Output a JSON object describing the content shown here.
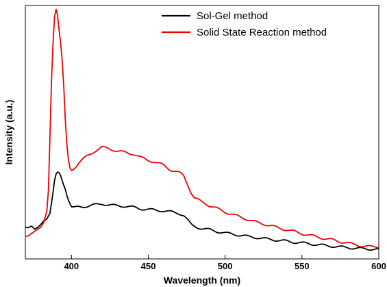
{
  "chart_data": {
    "type": "line",
    "title": "",
    "xlabel": "Wavelength (nm)",
    "ylabel": "Intensity (a.u.)",
    "xlim": [
      370,
      600
    ],
    "ylim": [
      0,
      100
    ],
    "x_ticks": [
      400,
      450,
      500,
      550,
      600
    ],
    "y_tick_labels_shown": false,
    "grid": false,
    "legend_position": "top-right",
    "series": [
      {
        "name": "Sol-Gel method",
        "color": "#000000",
        "points": [
          [
            370,
            12.5
          ],
          [
            372,
            12.0
          ],
          [
            374,
            12.5
          ],
          [
            376,
            11.5
          ],
          [
            378,
            12.5
          ],
          [
            380,
            14.0
          ],
          [
            382,
            15.5
          ],
          [
            384,
            15.8
          ],
          [
            386,
            18.0
          ],
          [
            388,
            26.0
          ],
          [
            389,
            31.0
          ],
          [
            390,
            33.5
          ],
          [
            391,
            34.3
          ],
          [
            392,
            34.0
          ],
          [
            393,
            32.8
          ],
          [
            394,
            30.8
          ],
          [
            395,
            29.0
          ],
          [
            396,
            27.5
          ],
          [
            397,
            25.5
          ],
          [
            398,
            23.5
          ],
          [
            399,
            22.0
          ],
          [
            400,
            20.5
          ],
          [
            402,
            20.2
          ],
          [
            405,
            20.5
          ],
          [
            410,
            20.8
          ],
          [
            415,
            21.3
          ],
          [
            420,
            21.8
          ],
          [
            425,
            21.2
          ],
          [
            430,
            21.0
          ],
          [
            435,
            20.8
          ],
          [
            440,
            20.4
          ],
          [
            445,
            19.8
          ],
          [
            450,
            19.5
          ],
          [
            455,
            19.2
          ],
          [
            460,
            19.0
          ],
          [
            465,
            18.5
          ],
          [
            470,
            18.0
          ],
          [
            473,
            17.2
          ],
          [
            476,
            15.0
          ],
          [
            478,
            13.5
          ],
          [
            480,
            12.8
          ],
          [
            485,
            12.0
          ],
          [
            490,
            11.5
          ],
          [
            495,
            10.8
          ],
          [
            500,
            10.2
          ],
          [
            505,
            9.8
          ],
          [
            510,
            9.3
          ],
          [
            515,
            8.8
          ],
          [
            520,
            8.5
          ],
          [
            525,
            8.0
          ],
          [
            530,
            7.7
          ],
          [
            535,
            7.3
          ],
          [
            540,
            7.0
          ],
          [
            545,
            6.6
          ],
          [
            550,
            6.3
          ],
          [
            555,
            6.0
          ],
          [
            560,
            5.6
          ],
          [
            565,
            5.3
          ],
          [
            570,
            5.0
          ],
          [
            575,
            4.7
          ],
          [
            580,
            4.5
          ],
          [
            585,
            4.2
          ],
          [
            590,
            4.0
          ],
          [
            595,
            3.9
          ],
          [
            600,
            3.8
          ]
        ]
      },
      {
        "name": "Solid State Reaction method",
        "color": "#ee0000",
        "points": [
          [
            370,
            9.0
          ],
          [
            372,
            9.5
          ],
          [
            374,
            10.5
          ],
          [
            376,
            11.0
          ],
          [
            378,
            11.5
          ],
          [
            380,
            12.0
          ],
          [
            382,
            14.0
          ],
          [
            384,
            19.0
          ],
          [
            385,
            27.0
          ],
          [
            386,
            48.0
          ],
          [
            387,
            70.0
          ],
          [
            388,
            85.0
          ],
          [
            389,
            95.5
          ],
          [
            390,
            98.5
          ],
          [
            391,
            96.0
          ],
          [
            392,
            90.0
          ],
          [
            393,
            85.0
          ],
          [
            394,
            78.0
          ],
          [
            395,
            68.0
          ],
          [
            396,
            55.0
          ],
          [
            397,
            45.0
          ],
          [
            398,
            39.0
          ],
          [
            399,
            36.0
          ],
          [
            400,
            35.0
          ],
          [
            402,
            36.0
          ],
          [
            405,
            38.0
          ],
          [
            410,
            40.5
          ],
          [
            415,
            42.5
          ],
          [
            420,
            44.0
          ],
          [
            425,
            43.5
          ],
          [
            430,
            42.5
          ],
          [
            435,
            42.0
          ],
          [
            440,
            41.5
          ],
          [
            445,
            40.0
          ],
          [
            450,
            39.0
          ],
          [
            455,
            38.0
          ],
          [
            460,
            37.0
          ],
          [
            465,
            35.0
          ],
          [
            470,
            34.0
          ],
          [
            473,
            33.0
          ],
          [
            476,
            29.0
          ],
          [
            478,
            26.0
          ],
          [
            480,
            24.0
          ],
          [
            485,
            22.5
          ],
          [
            490,
            21.0
          ],
          [
            495,
            19.8
          ],
          [
            500,
            18.5
          ],
          [
            505,
            17.5
          ],
          [
            510,
            16.5
          ],
          [
            515,
            15.5
          ],
          [
            520,
            14.5
          ],
          [
            525,
            13.8
          ],
          [
            530,
            13.0
          ],
          [
            535,
            12.2
          ],
          [
            540,
            11.5
          ],
          [
            545,
            10.8
          ],
          [
            550,
            10.0
          ],
          [
            555,
            9.3
          ],
          [
            560,
            8.7
          ],
          [
            565,
            8.0
          ],
          [
            570,
            7.5
          ],
          [
            575,
            6.8
          ],
          [
            580,
            6.2
          ],
          [
            585,
            5.6
          ],
          [
            590,
            5.0
          ],
          [
            595,
            4.8
          ],
          [
            600,
            4.8
          ]
        ]
      }
    ]
  }
}
